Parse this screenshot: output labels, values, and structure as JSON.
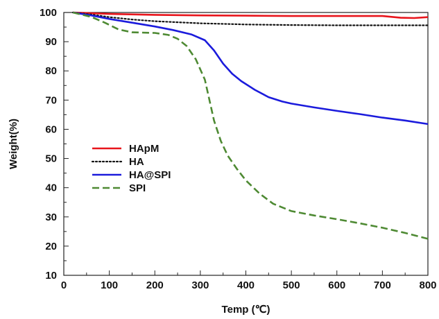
{
  "chart_data": {
    "type": "line",
    "title": "",
    "xlabel": "Temp (℃)",
    "ylabel": "Weight(%)",
    "xlim": [
      0,
      800
    ],
    "ylim": [
      10,
      100
    ],
    "xticks": [
      0,
      100,
      200,
      300,
      400,
      500,
      600,
      700,
      800
    ],
    "yticks": [
      10,
      20,
      30,
      40,
      50,
      60,
      70,
      80,
      90,
      100
    ],
    "grid": false,
    "legend_position": "center-left",
    "series": [
      {
        "name": "HApM",
        "color": "#e8141b",
        "style": "solid",
        "points": [
          [
            20,
            100
          ],
          [
            100,
            99.5
          ],
          [
            200,
            99.2
          ],
          [
            300,
            99
          ],
          [
            400,
            98.9
          ],
          [
            500,
            98.8
          ],
          [
            600,
            98.8
          ],
          [
            700,
            98.8
          ],
          [
            740,
            98.2
          ],
          [
            770,
            98.1
          ],
          [
            800,
            98.4
          ]
        ]
      },
      {
        "name": "HA",
        "color": "#111111",
        "style": "dotted",
        "points": [
          [
            20,
            100
          ],
          [
            60,
            99.3
          ],
          [
            100,
            98.4
          ],
          [
            150,
            97.6
          ],
          [
            200,
            97
          ],
          [
            300,
            96.3
          ],
          [
            400,
            95.9
          ],
          [
            500,
            95.7
          ],
          [
            600,
            95.6
          ],
          [
            700,
            95.6
          ],
          [
            800,
            95.6
          ]
        ]
      },
      {
        "name": "HA@SPI",
        "color": "#1b1bdc",
        "style": "solid",
        "points": [
          [
            20,
            100
          ],
          [
            60,
            99
          ],
          [
            100,
            97.8
          ],
          [
            150,
            96.5
          ],
          [
            200,
            95.2
          ],
          [
            240,
            94
          ],
          [
            280,
            92.5
          ],
          [
            310,
            90.5
          ],
          [
            330,
            87
          ],
          [
            350,
            82.5
          ],
          [
            370,
            79
          ],
          [
            390,
            76.5
          ],
          [
            420,
            73.5
          ],
          [
            450,
            71
          ],
          [
            480,
            69.5
          ],
          [
            500,
            68.8
          ],
          [
            550,
            67.5
          ],
          [
            600,
            66.3
          ],
          [
            650,
            65.2
          ],
          [
            700,
            64
          ],
          [
            750,
            63
          ],
          [
            800,
            61.8
          ]
        ]
      },
      {
        "name": "SPI",
        "color": "#4e8a33",
        "style": "dashed",
        "points": [
          [
            20,
            100
          ],
          [
            60,
            98.5
          ],
          [
            90,
            96.5
          ],
          [
            120,
            94.2
          ],
          [
            150,
            93.2
          ],
          [
            200,
            93
          ],
          [
            230,
            92.3
          ],
          [
            250,
            91
          ],
          [
            270,
            88.5
          ],
          [
            290,
            84
          ],
          [
            310,
            77
          ],
          [
            320,
            70
          ],
          [
            330,
            63
          ],
          [
            345,
            56
          ],
          [
            360,
            51
          ],
          [
            380,
            46.5
          ],
          [
            400,
            42.5
          ],
          [
            430,
            38
          ],
          [
            460,
            34.5
          ],
          [
            500,
            32
          ],
          [
            550,
            30.5
          ],
          [
            600,
            29.2
          ],
          [
            650,
            27.8
          ],
          [
            700,
            26.3
          ],
          [
            750,
            24.5
          ],
          [
            800,
            22.5
          ]
        ]
      }
    ]
  }
}
